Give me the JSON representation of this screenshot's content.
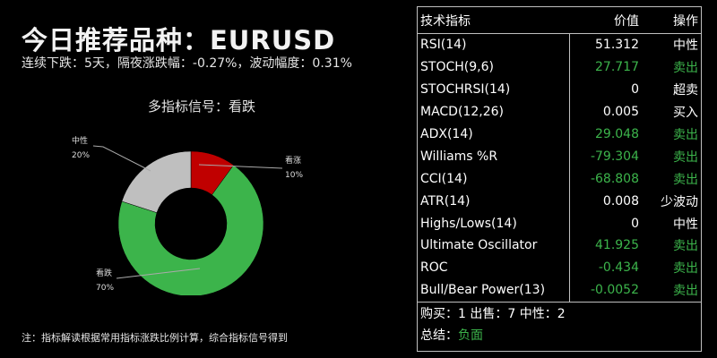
{
  "header": {
    "title": "今日推荐品种：EURUSD",
    "subtitle": "连续下跌：5天，隔夜涨跌幅：-0.27%，波动幅度：0.31%"
  },
  "chart_data": {
    "type": "pie",
    "title": "多指标信号：看跌",
    "categories": [
      "看涨",
      "看跌",
      "中性"
    ],
    "values": [
      10,
      70,
      20
    ],
    "colors": [
      "#c00000",
      "#3cb44b",
      "#bfbfbf"
    ],
    "labels": [
      {
        "name": "看涨",
        "pct": "10%"
      },
      {
        "name": "看跌",
        "pct": "70%"
      },
      {
        "name": "中性",
        "pct": "20%"
      }
    ],
    "style": "donut"
  },
  "note": "注：指标解读根据常用指标涨跌比例计算，综合指标信号得到",
  "table": {
    "headers": [
      "技术指标",
      "价值",
      "操作"
    ],
    "rows": [
      {
        "name": "RSI(14)",
        "value": "51.312",
        "action": "中性",
        "green": false
      },
      {
        "name": "STOCH(9,6)",
        "value": "27.717",
        "action": "卖出",
        "green": true
      },
      {
        "name": "STOCHRSI(14)",
        "value": "0",
        "action": "超卖",
        "green": false
      },
      {
        "name": "MACD(12,26)",
        "value": "0.005",
        "action": "买入",
        "green": false
      },
      {
        "name": "ADX(14)",
        "value": "29.048",
        "action": "卖出",
        "green": true
      },
      {
        "name": "Williams %R",
        "value": "-79.304",
        "action": "卖出",
        "green": true
      },
      {
        "name": "CCI(14)",
        "value": "-68.808",
        "action": "卖出",
        "green": true
      },
      {
        "name": "ATR(14)",
        "value": "0.008",
        "action": "少波动",
        "green": false
      },
      {
        "name": "Highs/Lows(14)",
        "value": "0",
        "action": "中性",
        "green": false
      },
      {
        "name": "Ultimate Oscillator",
        "value": "41.925",
        "action": "卖出",
        "green": true
      },
      {
        "name": "ROC",
        "value": "-0.434",
        "action": "卖出",
        "green": true
      },
      {
        "name": "Bull/Bear Power(13)",
        "value": "-0.0052",
        "action": "卖出",
        "green": true
      }
    ],
    "summary_counts": "购买：1 出售：7 中性：2",
    "summary_label": "总结：",
    "summary_value": "负面"
  }
}
